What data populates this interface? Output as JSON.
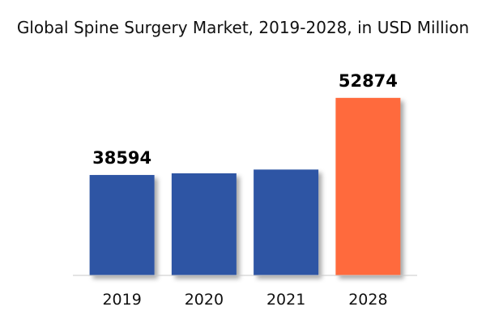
{
  "chart_data": {
    "type": "bar",
    "title": "Global Spine Surgery Market, 2019-2028, in USD Million",
    "xlabel": "",
    "ylabel": "",
    "categories": [
      "2019",
      "2020",
      "2021",
      "2028"
    ],
    "values": [
      38594,
      38900,
      39600,
      52874
    ],
    "data_labels": [
      "38594",
      "",
      "",
      "52874"
    ],
    "colors": [
      "#2f55a4",
      "#2f55a4",
      "#2f55a4",
      "#ff6b3d"
    ],
    "ylim": [
      20000,
      56000
    ],
    "grid": false,
    "legend": "none"
  }
}
